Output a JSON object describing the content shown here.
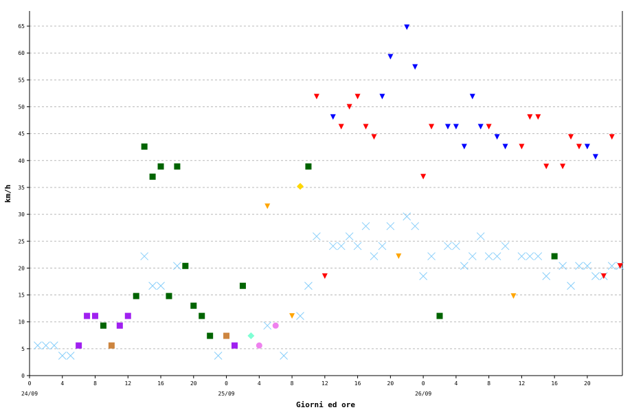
{
  "chart_data": {
    "type": "scatter",
    "title": "",
    "xlabel": "Giorni ed ore",
    "ylabel": "km/h",
    "xlim": [
      0,
      72.5
    ],
    "ylim": [
      0,
      68
    ],
    "x_unit": "hours",
    "grid": "horizontal-dashed",
    "legend": "none",
    "y_ticks": [
      0,
      5,
      10,
      15,
      20,
      25,
      30,
      35,
      40,
      45,
      50,
      55,
      60,
      65
    ],
    "x_ticks": [
      {
        "x": 0,
        "label": "0"
      },
      {
        "x": 4,
        "label": "4"
      },
      {
        "x": 8,
        "label": "8"
      },
      {
        "x": 12,
        "label": "12"
      },
      {
        "x": 16,
        "label": "16"
      },
      {
        "x": 20,
        "label": "20"
      },
      {
        "x": 24,
        "label": "0"
      },
      {
        "x": 28,
        "label": "4"
      },
      {
        "x": 32,
        "label": "8"
      },
      {
        "x": 36,
        "label": "12"
      },
      {
        "x": 40,
        "label": "16"
      },
      {
        "x": 44,
        "label": "20"
      },
      {
        "x": 48,
        "label": "0"
      },
      {
        "x": 52,
        "label": "4"
      },
      {
        "x": 56,
        "label": "8"
      },
      {
        "x": 60,
        "label": "12"
      },
      {
        "x": 64,
        "label": "16"
      },
      {
        "x": 68,
        "label": "20"
      }
    ],
    "date_labels": [
      {
        "x": 0,
        "label": "24/09"
      },
      {
        "x": 24,
        "label": "25/09"
      },
      {
        "x": 48,
        "label": "26/09"
      }
    ],
    "series": [
      {
        "marker": "x",
        "color": "#87cefa",
        "points": [
          [
            1,
            5.6
          ],
          [
            2,
            5.6
          ],
          [
            3,
            5.6
          ],
          [
            4,
            3.7
          ],
          [
            5,
            3.7
          ],
          [
            14,
            22.2
          ],
          [
            15,
            16.7
          ],
          [
            16,
            16.7
          ],
          [
            18,
            20.4
          ],
          [
            23,
            3.7
          ],
          [
            29,
            9.3
          ],
          [
            33,
            11.1
          ],
          [
            34,
            16.7
          ],
          [
            35,
            25.9
          ],
          [
            37,
            24.1
          ],
          [
            38,
            24.1
          ],
          [
            39,
            25.9
          ],
          [
            40,
            24.1
          ],
          [
            41,
            27.8
          ],
          [
            42,
            22.2
          ],
          [
            43,
            24.1
          ],
          [
            44,
            27.8
          ],
          [
            46,
            29.6
          ],
          [
            47,
            27.8
          ],
          [
            48,
            18.5
          ],
          [
            49,
            22.2
          ],
          [
            51,
            24.1
          ],
          [
            52,
            24.1
          ],
          [
            53,
            20.4
          ],
          [
            54,
            22.2
          ],
          [
            55,
            25.9
          ],
          [
            56,
            22.2
          ],
          [
            57,
            22.2
          ],
          [
            58,
            24.1
          ],
          [
            60,
            22.2
          ],
          [
            61,
            22.2
          ],
          [
            62,
            22.2
          ],
          [
            63,
            18.5
          ],
          [
            65,
            20.4
          ],
          [
            66,
            16.7
          ],
          [
            67,
            20.4
          ],
          [
            68,
            20.4
          ],
          [
            69,
            18.5
          ],
          [
            70,
            18.5
          ],
          [
            71,
            20.4
          ],
          [
            72,
            20.4
          ],
          [
            31,
            3.7
          ]
        ]
      },
      {
        "marker": "square",
        "color": "#006400",
        "points": [
          [
            9,
            9.3
          ],
          [
            13,
            14.8
          ],
          [
            14,
            42.6
          ],
          [
            15,
            37.0
          ],
          [
            16,
            38.9
          ],
          [
            17,
            14.8
          ],
          [
            18,
            38.9
          ],
          [
            19,
            20.4
          ],
          [
            20,
            13.0
          ],
          [
            21,
            11.1
          ],
          [
            22,
            7.4
          ],
          [
            26,
            16.7
          ],
          [
            34,
            38.9
          ],
          [
            50,
            11.1
          ],
          [
            64,
            22.2
          ]
        ]
      },
      {
        "marker": "square",
        "color": "#a020f0",
        "points": [
          [
            6,
            5.6
          ],
          [
            7,
            11.1
          ],
          [
            8,
            11.1
          ],
          [
            11,
            9.3
          ],
          [
            12,
            11.1
          ],
          [
            25,
            5.6
          ]
        ]
      },
      {
        "marker": "square",
        "color": "#cd853f",
        "points": [
          [
            10,
            5.6
          ],
          [
            24,
            7.4
          ]
        ]
      },
      {
        "marker": "diamond",
        "color": "#7fffd4",
        "points": [
          [
            27,
            7.4
          ]
        ]
      },
      {
        "marker": "circle",
        "color": "#ee82ee",
        "points": [
          [
            28,
            5.6
          ],
          [
            30,
            9.3
          ]
        ]
      },
      {
        "marker": "diamond",
        "color": "#ffd700",
        "points": [
          [
            33,
            35.2
          ]
        ]
      },
      {
        "marker": "triangle-down",
        "color": "#ffa500",
        "points": [
          [
            29,
            31.5
          ],
          [
            32,
            11.1
          ],
          [
            45,
            22.2
          ],
          [
            59,
            14.8
          ]
        ]
      },
      {
        "marker": "triangle-down",
        "color": "#ff0000",
        "points": [
          [
            35,
            51.9
          ],
          [
            36,
            18.5
          ],
          [
            38,
            46.3
          ],
          [
            39,
            50.0
          ],
          [
            40,
            51.9
          ],
          [
            41,
            46.3
          ],
          [
            42,
            44.4
          ],
          [
            48,
            37.0
          ],
          [
            49,
            46.3
          ],
          [
            56,
            46.3
          ],
          [
            60,
            42.6
          ],
          [
            61,
            48.1
          ],
          [
            62,
            48.1
          ],
          [
            63,
            38.9
          ],
          [
            65,
            38.9
          ],
          [
            66,
            44.4
          ],
          [
            67,
            42.6
          ],
          [
            70,
            18.5
          ],
          [
            71,
            44.4
          ],
          [
            72,
            20.4
          ]
        ]
      },
      {
        "marker": "triangle-down",
        "color": "#0000ff",
        "points": [
          [
            37,
            48.1
          ],
          [
            43,
            51.9
          ],
          [
            44,
            59.3
          ],
          [
            46,
            64.8
          ],
          [
            47,
            57.4
          ],
          [
            51,
            46.3
          ],
          [
            52,
            46.3
          ],
          [
            53,
            42.6
          ],
          [
            54,
            51.9
          ],
          [
            55,
            46.3
          ],
          [
            57,
            44.4
          ],
          [
            58,
            42.6
          ],
          [
            68,
            42.6
          ],
          [
            69,
            40.7
          ]
        ]
      }
    ]
  }
}
